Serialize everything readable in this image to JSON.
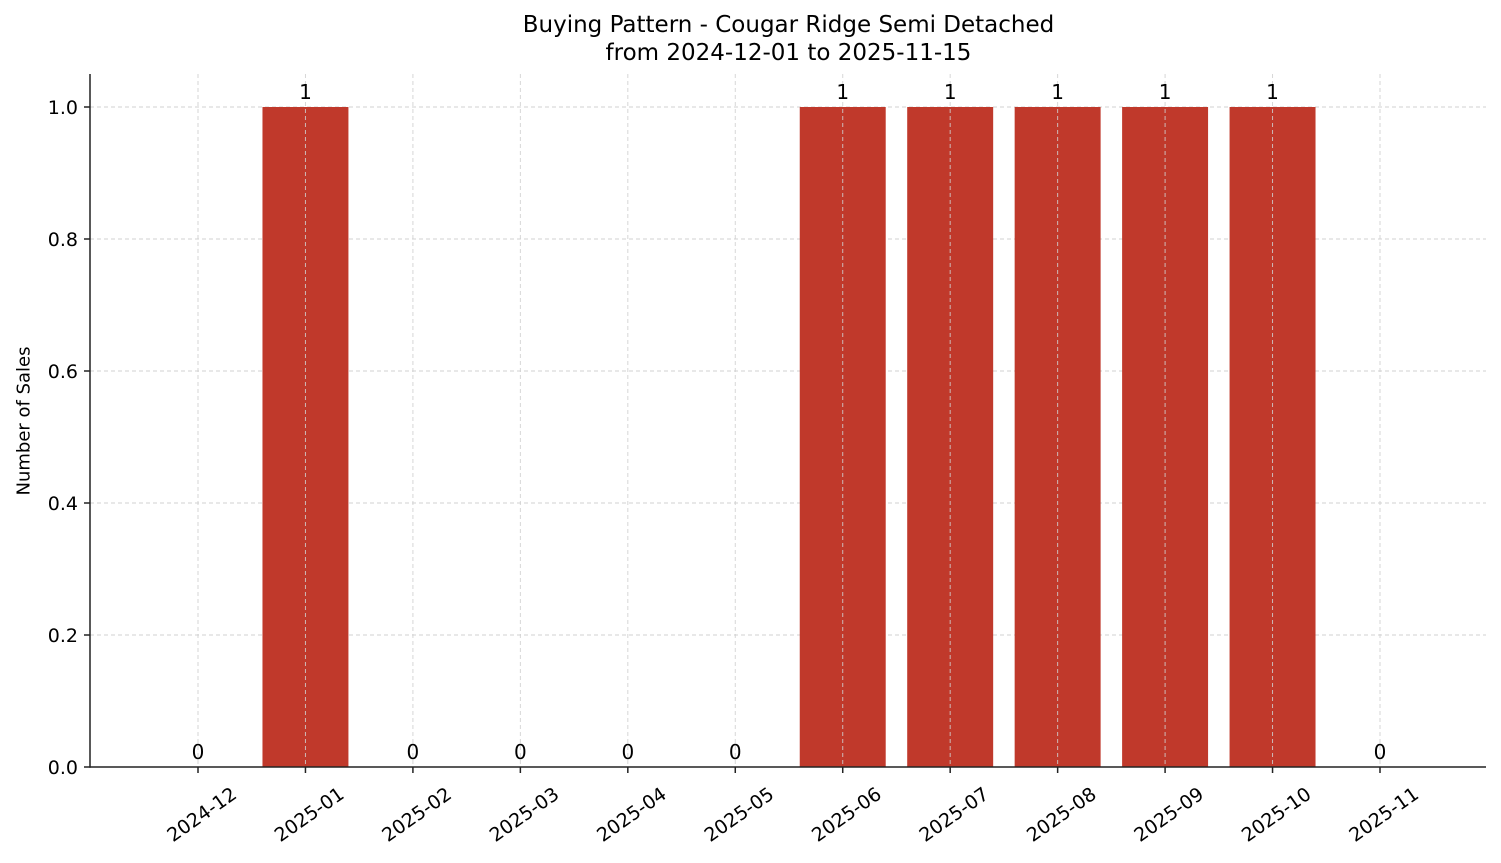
{
  "chart_data": {
    "type": "bar",
    "title": "Buying Pattern - Cougar Ridge Semi Detached",
    "subtitle": "from 2024-12-01 to 2025-11-15",
    "xlabel": "",
    "ylabel": "Number of Sales",
    "categories": [
      "2024-12",
      "2025-01",
      "2025-02",
      "2025-03",
      "2025-04",
      "2025-05",
      "2025-06",
      "2025-07",
      "2025-08",
      "2025-09",
      "2025-10",
      "2025-11"
    ],
    "values": [
      0,
      1,
      0,
      0,
      0,
      0,
      1,
      1,
      1,
      1,
      1,
      0
    ],
    "data_labels": [
      "0",
      "1",
      "0",
      "0",
      "0",
      "0",
      "1",
      "1",
      "1",
      "1",
      "1",
      "0"
    ],
    "yticks": [
      "0.0",
      "0.2",
      "0.4",
      "0.6",
      "0.8",
      "1.0"
    ],
    "ylim": [
      0,
      1.05
    ],
    "grid": true,
    "legend": null,
    "bar_color": "#c0392b"
  }
}
